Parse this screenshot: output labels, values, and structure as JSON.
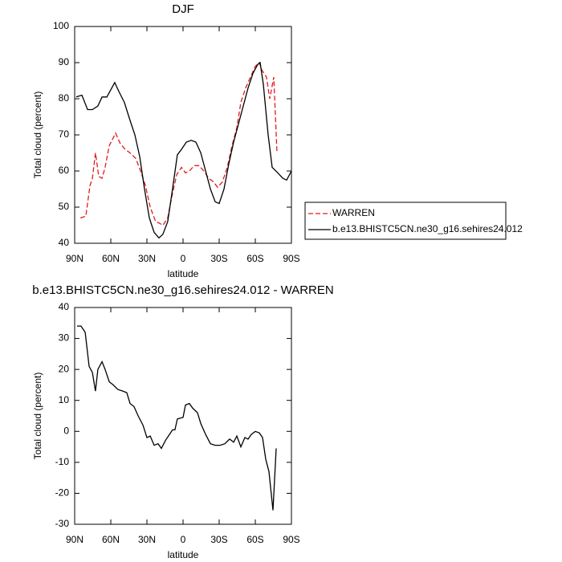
{
  "chart_data": [
    {
      "type": "line",
      "title": "DJF",
      "xlabel": "latitude",
      "ylabel": "Total cloud (percent)",
      "xlim": [
        90,
        -90
      ],
      "xticks": [
        {
          "value": 90,
          "label": "90N"
        },
        {
          "value": 60,
          "label": "60N"
        },
        {
          "value": 30,
          "label": "30N"
        },
        0,
        {
          "value": -30,
          "label": "30S"
        },
        {
          "value": -60,
          "label": "60S"
        },
        {
          "value": -90,
          "label": "90S"
        }
      ],
      "ylim": [
        40,
        100
      ],
      "yticks": [
        40,
        50,
        60,
        70,
        80,
        90,
        100
      ],
      "legend": "right",
      "series": [
        {
          "name": "WARREN",
          "color": "#e31a1c",
          "dashed": true,
          "x": [
            85.3,
            80.7,
            77.3,
            75.3,
            72.7,
            70,
            67.3,
            64.7,
            61.3,
            56,
            52,
            48,
            44,
            39.3,
            35.3,
            31.3,
            27.3,
            22.7,
            19.3,
            16.7,
            12.7,
            9.3,
            5.3,
            1.3,
            -2,
            -5.3,
            -9.3,
            -13.3,
            -17.3,
            -21.3,
            -25.3,
            -28.7,
            -32.7,
            -36.7,
            -40.7,
            -44.7,
            -48,
            -52,
            -56,
            -60,
            -63.3,
            -65.3,
            -69.3,
            -72,
            -75.3,
            -78
          ],
          "values": [
            47,
            47.5,
            56,
            58,
            65,
            58.5,
            58,
            61,
            67,
            70.5,
            67.5,
            66,
            65,
            63.5,
            60,
            56,
            50,
            46,
            45.5,
            45,
            47,
            53,
            59,
            61,
            59.5,
            60,
            61.5,
            61.5,
            60,
            58,
            57,
            55.5,
            57,
            61,
            67,
            72,
            79,
            83,
            86,
            89,
            90,
            88,
            86,
            80,
            86,
            65
          ]
        },
        {
          "name": "b.e13.BHISTC5CN.ne30_g16.sehires24.012",
          "color": "#000000",
          "dashed": false,
          "x": [
            88.7,
            84,
            79.3,
            75.3,
            70.7,
            67.3,
            63.3,
            60,
            56.7,
            53.3,
            48.7,
            44,
            40,
            36,
            32,
            28,
            24,
            20,
            16.7,
            12.7,
            8.7,
            4.7,
            1.3,
            -2.7,
            -6.7,
            -10.7,
            -14.7,
            -18.7,
            -22.7,
            -26.7,
            -30,
            -34,
            -38,
            -42,
            -46,
            -50,
            -54,
            -58,
            -62,
            -64,
            -66.7,
            -70.7,
            -74,
            -78.7,
            -82.7,
            -86,
            -90
          ],
          "values": [
            80.5,
            81,
            77,
            77,
            78,
            80.5,
            80.5,
            82.5,
            84.5,
            82,
            79,
            74,
            70,
            64,
            55,
            47,
            43,
            41.5,
            42.5,
            46,
            55,
            64.5,
            66,
            68,
            68.5,
            68,
            65,
            60,
            55,
            51.5,
            51,
            55,
            62,
            68,
            73,
            78,
            83,
            87,
            89.5,
            90,
            84,
            70,
            61,
            59.5,
            58,
            57.5,
            60
          ]
        }
      ]
    },
    {
      "type": "line",
      "title": "b.e13.BHISTC5CN.ne30_g16.sehires24.012 - WARREN",
      "xlabel": "latitude",
      "ylabel": "Total cloud (percent)",
      "xlim": [
        90,
        -90
      ],
      "xticks": [
        {
          "value": 90,
          "label": "90N"
        },
        {
          "value": 60,
          "label": "60N"
        },
        {
          "value": 30,
          "label": "30N"
        },
        0,
        {
          "value": -30,
          "label": "30S"
        },
        {
          "value": -60,
          "label": "60S"
        },
        {
          "value": -90,
          "label": "90S"
        }
      ],
      "ylim": [
        -30,
        40
      ],
      "yticks": [
        -30,
        -20,
        -10,
        0,
        10,
        20,
        30,
        40
      ],
      "series": [
        {
          "color": "#000000",
          "dashed": false,
          "x": [
            88,
            84.7,
            81.3,
            78,
            75.3,
            72.7,
            70.7,
            67.3,
            64.7,
            61.3,
            58,
            54,
            50,
            46.7,
            44,
            40.7,
            37.3,
            33.3,
            30,
            27.3,
            24,
            20.7,
            18,
            14.7,
            11.3,
            8.7,
            6.7,
            4.7,
            0,
            -2,
            -5.3,
            -8,
            -12,
            -14.7,
            -18.7,
            -22.7,
            -26.7,
            -30.7,
            -34.7,
            -38.7,
            -42,
            -44.7,
            -48,
            -51.3,
            -54,
            -56.7,
            -60,
            -63.3,
            -66,
            -68.7,
            -71.3,
            -74.7,
            -77.3
          ],
          "values": [
            34,
            34,
            32,
            21,
            19,
            13,
            20,
            22.5,
            20,
            16,
            15,
            13.5,
            13,
            12.5,
            9,
            8,
            5,
            2,
            -2,
            -1.5,
            -4.5,
            -4,
            -5.5,
            -3,
            -1,
            0.5,
            0.5,
            4,
            4.5,
            8.5,
            9,
            7.5,
            6,
            2.5,
            -1,
            -4,
            -4.5,
            -4.5,
            -4,
            -2.5,
            -3.5,
            -1.5,
            -5,
            -2,
            -2.5,
            -1,
            0,
            -0.5,
            -2,
            -9,
            -13,
            -25.5,
            -5.5
          ]
        }
      ]
    }
  ]
}
